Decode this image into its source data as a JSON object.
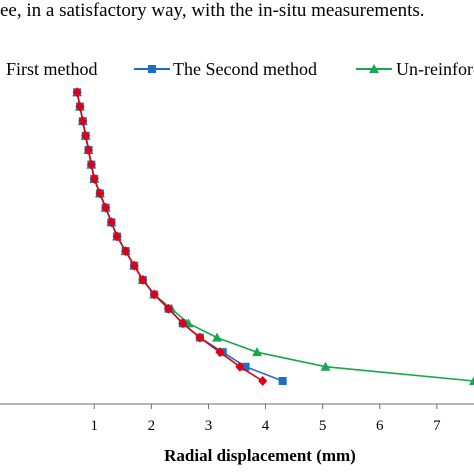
{
  "caption": "ee, in a satisfactory way, with the in-situ measurements.",
  "colors": {
    "first": "#e0000f",
    "second": "#1f6fc0",
    "unreinforced": "#16a84a",
    "axis": "#6f6f6f"
  },
  "chart_data": {
    "type": "line",
    "title": "",
    "xlabel": "Radial displacement (mm)",
    "ylabel": "",
    "xlim": [
      -0.65,
      7.65
    ],
    "ylim": [
      0,
      1
    ],
    "x_ticks": [
      1,
      2,
      3,
      4,
      5,
      6,
      7
    ],
    "grid": false,
    "legend": "top",
    "series": [
      {
        "name": "First method",
        "color": "#e0000f",
        "marker": "diamond",
        "x": [
          0.7,
          0.75,
          0.8,
          0.85,
          0.9,
          0.95,
          1.0,
          1.1,
          1.2,
          1.3,
          1.4,
          1.55,
          1.7,
          1.85,
          2.05,
          2.3,
          2.55,
          2.85,
          3.2,
          3.55,
          3.95
        ],
        "y": [
          0.962,
          0.918,
          0.873,
          0.828,
          0.784,
          0.739,
          0.695,
          0.65,
          0.606,
          0.561,
          0.517,
          0.472,
          0.427,
          0.383,
          0.338,
          0.294,
          0.249,
          0.205,
          0.16,
          0.115,
          0.071
        ]
      },
      {
        "name": "The Second method",
        "color": "#1f6fc0",
        "marker": "square",
        "x": [
          0.7,
          0.75,
          0.8,
          0.85,
          0.9,
          0.95,
          1.0,
          1.1,
          1.2,
          1.3,
          1.4,
          1.55,
          1.7,
          1.85,
          2.05,
          2.3,
          2.55,
          2.85,
          3.25,
          3.65,
          4.3
        ],
        "y": [
          0.962,
          0.918,
          0.873,
          0.828,
          0.784,
          0.739,
          0.695,
          0.65,
          0.606,
          0.561,
          0.517,
          0.472,
          0.427,
          0.383,
          0.338,
          0.294,
          0.249,
          0.205,
          0.16,
          0.115,
          0.071
        ]
      },
      {
        "name": "Un-reinforced",
        "color": "#16a84a",
        "marker": "triangle",
        "x": [
          0.7,
          0.75,
          0.8,
          0.85,
          0.9,
          0.95,
          1.0,
          1.1,
          1.2,
          1.3,
          1.4,
          1.55,
          1.7,
          1.85,
          2.05,
          2.35,
          2.65,
          3.15,
          3.85,
          5.05,
          7.65
        ],
        "y": [
          0.962,
          0.918,
          0.873,
          0.828,
          0.784,
          0.739,
          0.695,
          0.65,
          0.606,
          0.561,
          0.517,
          0.472,
          0.427,
          0.383,
          0.338,
          0.294,
          0.249,
          0.205,
          0.16,
          0.115,
          0.071
        ]
      }
    ]
  }
}
